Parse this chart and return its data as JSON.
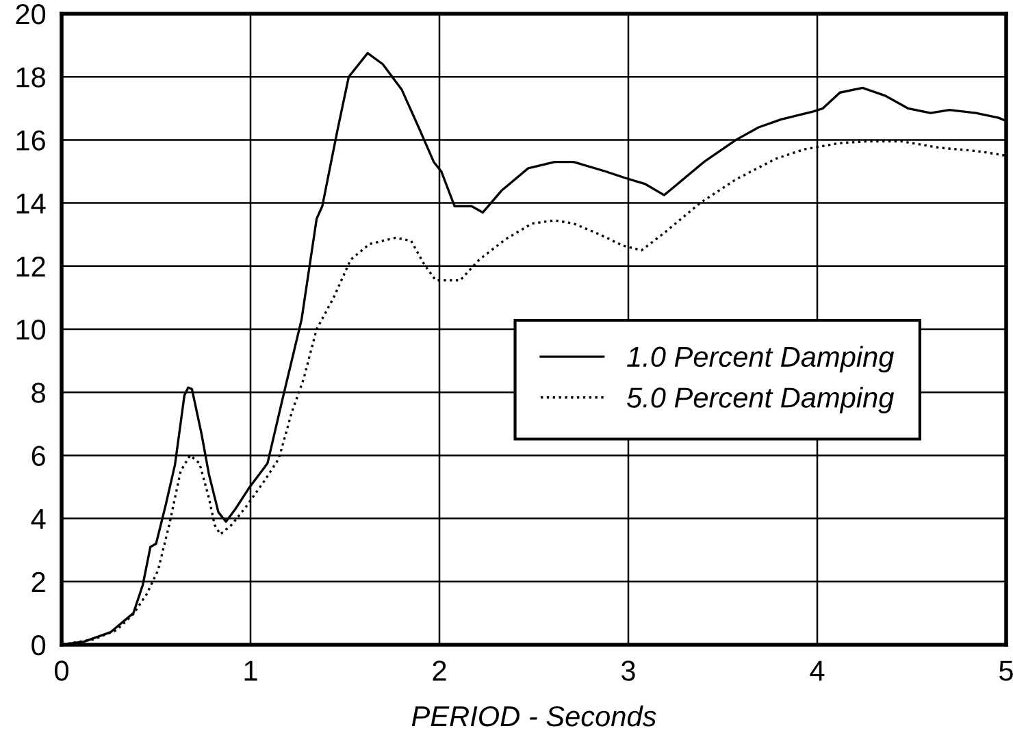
{
  "chart_data": {
    "type": "line",
    "xlabel": "PERIOD - Seconds",
    "xlim": [
      0,
      5
    ],
    "xticks": [
      0,
      1,
      2,
      3,
      4,
      5
    ],
    "ylim": [
      0,
      20
    ],
    "yticks": [
      0,
      2,
      4,
      6,
      8,
      10,
      12,
      14,
      16,
      18,
      20
    ],
    "grid": true,
    "legend": "right",
    "marker": "none",
    "series": [
      {
        "name": "1.0 Percent Damping",
        "color": "#000000",
        "line_style": "solid",
        "x": [
          0,
          0.12,
          0.26,
          0.38,
          0.43,
          0.47,
          0.5,
          0.55,
          0.6,
          0.65,
          0.67,
          0.69,
          0.74,
          0.78,
          0.83,
          0.87,
          0.92,
          0.99,
          1.09,
          1.17,
          1.27,
          1.35,
          1.38,
          1.46,
          1.52,
          1.62,
          1.7,
          1.8,
          1.89,
          1.97,
          2.01,
          2.08,
          2.17,
          2.23,
          2.33,
          2.47,
          2.61,
          2.71,
          2.88,
          2.98,
          3.09,
          3.19,
          3.26,
          3.4,
          3.57,
          3.69,
          3.81,
          3.98,
          4.03,
          4.12,
          4.24,
          4.36,
          4.48,
          4.6,
          4.7,
          4.84,
          4.96,
          5.0
        ],
        "values": [
          0,
          0.1,
          0.4,
          1.0,
          1.9,
          3.1,
          3.2,
          4.4,
          5.7,
          7.9,
          8.15,
          8.1,
          6.7,
          5.4,
          4.2,
          3.9,
          4.3,
          4.95,
          5.75,
          7.8,
          10.3,
          13.5,
          13.9,
          16.3,
          18.0,
          18.75,
          18.4,
          17.6,
          16.4,
          15.3,
          15.0,
          13.9,
          13.9,
          13.7,
          14.4,
          15.1,
          15.3,
          15.3,
          15.0,
          14.8,
          14.6,
          14.25,
          14.6,
          15.3,
          16.0,
          16.4,
          16.65,
          16.9,
          17.0,
          17.5,
          17.65,
          17.4,
          17.0,
          16.85,
          16.95,
          16.85,
          16.7,
          16.6
        ]
      },
      {
        "name": "5.0 Percent Damping",
        "color": "#000000",
        "line_style": "dotted",
        "x": [
          0,
          0.17,
          0.29,
          0.38,
          0.45,
          0.51,
          0.57,
          0.63,
          0.68,
          0.73,
          0.78,
          0.81,
          0.84,
          0.9,
          0.98,
          1.08,
          1.15,
          1.22,
          1.28,
          1.35,
          1.44,
          1.53,
          1.63,
          1.77,
          1.85,
          1.92,
          1.98,
          2.11,
          2.21,
          2.35,
          2.49,
          2.61,
          2.71,
          2.85,
          2.97,
          3.07,
          3.19,
          3.38,
          3.57,
          3.78,
          3.93,
          4.12,
          4.26,
          4.45,
          4.65,
          4.84,
          4.95,
          5.0
        ],
        "values": [
          0,
          0.17,
          0.46,
          0.97,
          1.6,
          2.35,
          3.8,
          5.5,
          6.0,
          5.75,
          4.65,
          3.8,
          3.5,
          3.8,
          4.4,
          5.25,
          5.9,
          7.4,
          8.4,
          10.0,
          11.0,
          12.2,
          12.7,
          12.9,
          12.8,
          12.05,
          11.55,
          11.55,
          12.2,
          12.85,
          13.35,
          13.45,
          13.35,
          13.0,
          12.65,
          12.5,
          13.05,
          14.0,
          14.75,
          15.4,
          15.7,
          15.9,
          15.95,
          15.95,
          15.75,
          15.65,
          15.55,
          15.5
        ]
      }
    ]
  }
}
